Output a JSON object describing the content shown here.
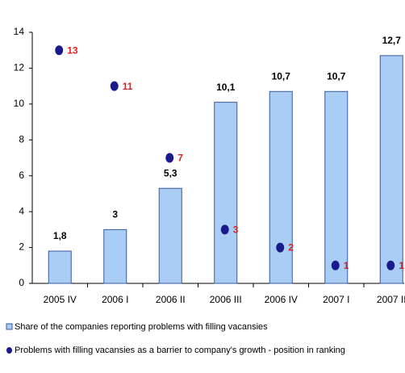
{
  "chart_data": {
    "type": "bar",
    "categories": [
      "2005 IV",
      "2006 I",
      "2006 II",
      "2006 III",
      "2006 IV",
      "2007 I",
      "2007 II"
    ],
    "series": [
      {
        "name": "Share of the companies reporting problems with filling vacansies",
        "type": "bar",
        "color": "#a9cdf5",
        "values": [
          1.8,
          3,
          5.3,
          10.1,
          10.7,
          10.7,
          12.7
        ],
        "value_labels": [
          "1,8",
          "3",
          "5,3",
          "10,1",
          "10,7",
          "10,7",
          "12,7"
        ]
      },
      {
        "name": "Problems with filling vacansies as a barrier to company's growth - position in ranking",
        "type": "scatter",
        "color": "#1a1a8c",
        "values": [
          13,
          11,
          7,
          3,
          2,
          1,
          1
        ]
      }
    ],
    "ylim": [
      0,
      14
    ],
    "yticks": [
      0,
      2,
      4,
      6,
      8,
      10,
      12,
      14
    ],
    "grid": false
  }
}
